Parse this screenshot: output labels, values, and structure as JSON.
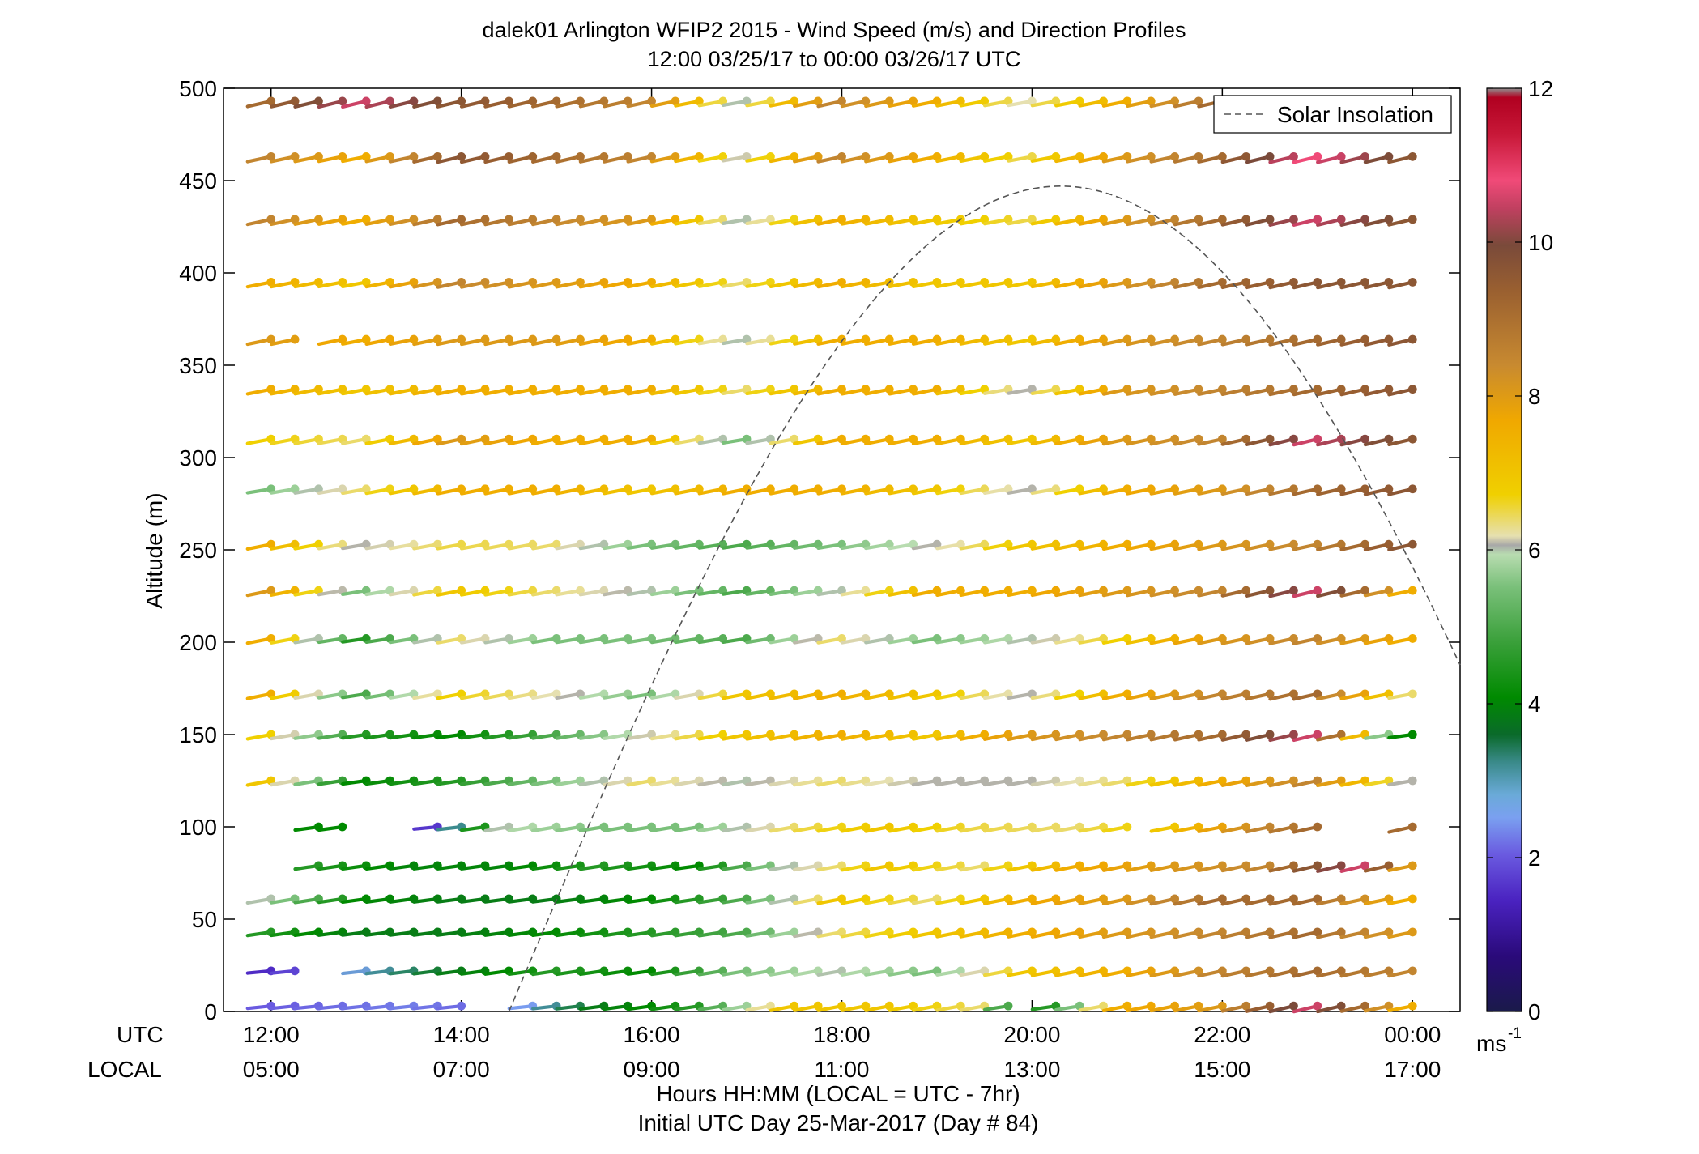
{
  "chart_data": {
    "type": "wind-barb-profile",
    "title": "dalek01 Arlington WFIP2 2015 - Wind Speed (m/s) and Direction Profiles",
    "subtitle": "12:00 03/25/17 to 00:00 03/26/17  UTC",
    "ylabel": "Altitude (m)",
    "xlabel": "Hours HH:MM  (LOCAL = UTC - 7hr)",
    "xlabel2": "Initial UTC Day 25-Mar-2017 (Day # 84)",
    "row_label_utc": "UTC",
    "row_label_local": "LOCAL",
    "x_ticks_utc": [
      "12:00",
      "14:00",
      "16:00",
      "18:00",
      "20:00",
      "22:00",
      "00:00"
    ],
    "x_ticks_local": [
      "05:00",
      "07:00",
      "09:00",
      "11:00",
      "13:00",
      "15:00",
      "17:00"
    ],
    "x_tick_hours": [
      12,
      14,
      16,
      18,
      20,
      22,
      24
    ],
    "xlim_hours": [
      11.5,
      24.5
    ],
    "y_ticks": [
      0,
      50,
      100,
      150,
      200,
      250,
      300,
      350,
      400,
      450,
      500
    ],
    "ylim": [
      0,
      500
    ],
    "grid": false,
    "legend": {
      "entries": [
        "Solar Insolation"
      ],
      "location": "top-right"
    },
    "colorbar": {
      "label": "ms",
      "label_exponent": "-1",
      "ticks": [
        0,
        2,
        4,
        6,
        8,
        10,
        12
      ],
      "range": [
        0,
        12
      ]
    },
    "altitudes": [
      3,
      22,
      43,
      61,
      79,
      100,
      125,
      150,
      172,
      202,
      228,
      253,
      283,
      310,
      337,
      364,
      395,
      429,
      463,
      493
    ],
    "speed_profiles": [
      {
        "alt": 3,
        "knots_hours": [
          12.0,
          13.5,
          14.5,
          15.5,
          16.5,
          17.5,
          18.5,
          19.5,
          20.0,
          21.0,
          22.0,
          23.0,
          24.0
        ],
        "knots_speeds": [
          2.0,
          2.2,
          2.0,
          3.5,
          4.5,
          7.0,
          7.0,
          6.5,
          3.5,
          7.5,
          8.0,
          10.5,
          7.5
        ]
      },
      {
        "alt": 22,
        "knots_hours": [
          12.0,
          13.0,
          14.0,
          15.0,
          16.0,
          17.0,
          18.0,
          19.0,
          20.0,
          21.0,
          22.0,
          23.0,
          24.0
        ],
        "knots_speeds": [
          1.5,
          2.5,
          3.5,
          4.5,
          4.0,
          5.5,
          6.0,
          5.5,
          7.0,
          7.5,
          8.5,
          9.0,
          8.5
        ]
      },
      {
        "alt": 43,
        "knots_hours": [
          12.0,
          13.0,
          14.0,
          15.0,
          16.0,
          17.0,
          18.0,
          19.0,
          20.0,
          21.0,
          22.0,
          23.0,
          24.0
        ],
        "knots_speeds": [
          4.5,
          3.5,
          3.5,
          4.0,
          4.5,
          5.0,
          6.5,
          7.0,
          7.5,
          8.0,
          8.5,
          9.0,
          8.0
        ]
      },
      {
        "alt": 61,
        "knots_hours": [
          12.0,
          13.0,
          14.0,
          15.0,
          16.0,
          17.0,
          18.0,
          19.0,
          20.0,
          21.0,
          22.0,
          23.0,
          24.0
        ],
        "knots_speeds": [
          6.0,
          4.0,
          3.5,
          3.5,
          4.0,
          5.0,
          7.0,
          6.5,
          7.5,
          8.0,
          9.0,
          9.0,
          7.5
        ]
      },
      {
        "alt": 79,
        "knots_hours": [
          12.5,
          13.5,
          14.5,
          15.5,
          16.5,
          17.5,
          18.5,
          19.5,
          20.5,
          21.5,
          22.5,
          23.5,
          24.0
        ],
        "knots_speeds": [
          4.5,
          3.8,
          3.8,
          4.5,
          4.0,
          6.0,
          7.0,
          6.5,
          7.5,
          8.0,
          8.5,
          10.5,
          8.0
        ]
      },
      {
        "alt": 100,
        "knots_hours": [
          12.3,
          12.8,
          13.8,
          14.5,
          15.5,
          16.5,
          17.5,
          18.5,
          19.5,
          20.5,
          21.5,
          22.5,
          23.5,
          24.0
        ],
        "knots_speeds": [
          4.0,
          4.0,
          1.5,
          6.0,
          5.5,
          5.5,
          6.5,
          7.0,
          6.6,
          6.5,
          7.0,
          8.5,
          9.5,
          9.0
        ]
      },
      {
        "alt": 125,
        "knots_hours": [
          12.0,
          13.0,
          14.0,
          15.0,
          16.0,
          17.0,
          18.0,
          19.0,
          20.0,
          21.0,
          22.0,
          23.0,
          24.0
        ],
        "knots_speeds": [
          7.0,
          4.0,
          4.5,
          5.5,
          6.5,
          6.0,
          6.5,
          6.1,
          6.1,
          6.5,
          7.5,
          8.5,
          6.1
        ]
      },
      {
        "alt": 150,
        "knots_hours": [
          12.0,
          13.0,
          14.0,
          15.0,
          16.0,
          17.0,
          18.0,
          19.0,
          20.0,
          21.0,
          22.0,
          23.0,
          24.0
        ],
        "knots_speeds": [
          6.8,
          4.5,
          4.0,
          5.0,
          6.2,
          7.0,
          7.5,
          7.0,
          8.0,
          8.5,
          9.0,
          10.5,
          4.0
        ]
      },
      {
        "alt": 172,
        "knots_hours": [
          12.0,
          13.0,
          14.0,
          15.0,
          16.0,
          17.0,
          18.0,
          19.0,
          20.0,
          21.0,
          22.0,
          23.0,
          24.0
        ],
        "knots_speeds": [
          7.5,
          5.0,
          6.8,
          6.3,
          5.5,
          7.0,
          7.5,
          7.0,
          6.1,
          7.5,
          8.5,
          9.0,
          6.5
        ]
      },
      {
        "alt": 202,
        "knots_hours": [
          12.0,
          13.0,
          14.0,
          15.0,
          16.0,
          17.0,
          18.0,
          19.0,
          20.0,
          21.0,
          22.0,
          23.0,
          24.0
        ],
        "knots_speeds": [
          7.5,
          4.5,
          6.5,
          5.5,
          5.5,
          5.0,
          6.5,
          5.5,
          6.0,
          6.8,
          8.0,
          8.5,
          7.5
        ]
      },
      {
        "alt": 228,
        "knots_hours": [
          12.0,
          13.0,
          14.0,
          15.0,
          16.0,
          17.0,
          18.0,
          19.0,
          20.0,
          21.0,
          22.0,
          23.0,
          24.0
        ],
        "knots_speeds": [
          8.0,
          5.5,
          7.0,
          6.5,
          6.0,
          5.0,
          6.0,
          7.5,
          7.5,
          8.0,
          8.5,
          10.5,
          7.5
        ]
      },
      {
        "alt": 253,
        "knots_hours": [
          12.0,
          13.0,
          14.0,
          15.0,
          16.0,
          17.0,
          18.0,
          19.0,
          20.0,
          21.0,
          22.0,
          23.0,
          24.0
        ],
        "knots_speeds": [
          7.5,
          6.1,
          6.6,
          6.5,
          5.5,
          5.0,
          5.5,
          6.1,
          7.0,
          7.5,
          8.0,
          8.5,
          9.5
        ]
      },
      {
        "alt": 283,
        "knots_hours": [
          12.0,
          13.0,
          14.0,
          15.0,
          16.0,
          17.0,
          18.0,
          19.0,
          20.0,
          21.0,
          22.0,
          23.0,
          24.0
        ],
        "knots_speeds": [
          5.5,
          6.5,
          7.5,
          7.5,
          7.0,
          7.5,
          7.5,
          7.0,
          6.1,
          7.5,
          8.0,
          9.0,
          9.5
        ]
      },
      {
        "alt": 310,
        "knots_hours": [
          12.0,
          13.0,
          14.0,
          15.0,
          16.0,
          17.0,
          18.0,
          19.0,
          20.0,
          21.0,
          22.0,
          23.0,
          24.0
        ],
        "knots_speeds": [
          6.8,
          6.5,
          8.0,
          7.5,
          7.5,
          5.5,
          7.5,
          7.5,
          7.0,
          8.0,
          8.5,
          10.5,
          9.5
        ]
      },
      {
        "alt": 337,
        "knots_hours": [
          12.0,
          13.0,
          14.0,
          15.0,
          16.0,
          17.0,
          18.0,
          19.0,
          20.0,
          21.0,
          22.0,
          23.0,
          24.0
        ],
        "knots_speeds": [
          7.5,
          7.0,
          7.5,
          7.5,
          7.5,
          6.5,
          7.5,
          7.5,
          6.1,
          8.0,
          8.5,
          9.0,
          9.5
        ]
      },
      {
        "alt": 364,
        "knots_hours": [
          12.0,
          13.0,
          14.0,
          15.0,
          16.0,
          17.0,
          18.0,
          19.0,
          20.0,
          21.0,
          22.0,
          23.0,
          24.0
        ],
        "knots_speeds": [
          8.0,
          7.5,
          8.0,
          8.0,
          7.5,
          6.0,
          7.5,
          7.5,
          7.0,
          8.0,
          8.5,
          9.0,
          9.5
        ]
      },
      {
        "alt": 395,
        "knots_hours": [
          12.0,
          13.0,
          14.0,
          15.0,
          16.0,
          17.0,
          18.0,
          19.0,
          20.0,
          21.0,
          22.0,
          23.0,
          24.0
        ],
        "knots_speeds": [
          7.5,
          7.0,
          8.5,
          8.0,
          7.5,
          6.5,
          7.5,
          7.0,
          7.0,
          8.0,
          9.0,
          9.5,
          9.5
        ]
      },
      {
        "alt": 429,
        "knots_hours": [
          12.0,
          13.0,
          14.0,
          15.0,
          16.0,
          17.0,
          18.0,
          19.0,
          20.0,
          21.0,
          22.0,
          23.0,
          24.0
        ],
        "knots_speeds": [
          8.5,
          7.5,
          9.0,
          8.5,
          8.0,
          6.0,
          7.5,
          7.0,
          6.6,
          8.0,
          9.0,
          10.5,
          9.5
        ]
      },
      {
        "alt": 463,
        "knots_hours": [
          12.0,
          13.0,
          14.0,
          15.0,
          16.0,
          17.0,
          18.0,
          19.0,
          20.0,
          21.0,
          22.0,
          23.0,
          24.0
        ],
        "knots_speeds": [
          8.5,
          7.5,
          9.5,
          9.0,
          8.5,
          6.2,
          8.5,
          7.5,
          6.6,
          8.0,
          9.0,
          10.8,
          9.5
        ]
      },
      {
        "alt": 493,
        "knots_hours": [
          12.0,
          13.0,
          14.0,
          15.0,
          16.0,
          17.0,
          18.0,
          19.0,
          20.0,
          21.0,
          22.0,
          23.0,
          24.0
        ],
        "knots_speeds": [
          9.0,
          10.5,
          9.5,
          9.0,
          8.5,
          6.0,
          8.5,
          7.5,
          6.3,
          7.5,
          9.0,
          9.5,
          9.5
        ]
      }
    ],
    "gaps": [
      {
        "alt": 3,
        "from": 14.1,
        "to": 14.7
      },
      {
        "alt": 3,
        "from": 19.8,
        "to": 20.2
      },
      {
        "alt": 22,
        "from": 12.5,
        "to": 12.8
      },
      {
        "alt": 79,
        "from": 11.8,
        "to": 12.3
      },
      {
        "alt": 100,
        "from": 11.8,
        "to": 12.3
      },
      {
        "alt": 100,
        "from": 12.95,
        "to": 13.7
      },
      {
        "alt": 100,
        "from": 21.1,
        "to": 21.4
      },
      {
        "alt": 100,
        "from": 23.1,
        "to": 23.75
      },
      {
        "alt": 364,
        "from": 12.45,
        "to": 12.65
      }
    ],
    "solar_insolation": {
      "rise_hour": 14.5,
      "peak_hour": 20.3,
      "peak_altitude": 447,
      "curve": "sine"
    }
  }
}
